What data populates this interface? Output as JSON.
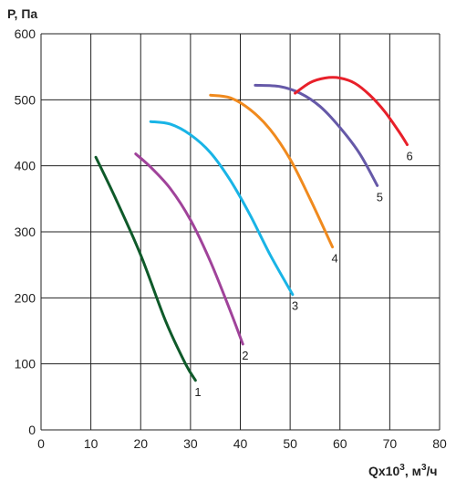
{
  "chart_data": {
    "type": "line",
    "xlabel_main": "Qx10",
    "xlabel_sup": "3",
    "xlabel_tail": ", м",
    "xlabel_sup2": "3",
    "xlabel_end": "/ч",
    "ylabel": "P, Па",
    "xlim": [
      0,
      80
    ],
    "ylim": [
      0,
      600
    ],
    "xticks": [
      0,
      10,
      20,
      30,
      40,
      50,
      60,
      70,
      80
    ],
    "yticks": [
      0,
      100,
      200,
      300,
      400,
      500,
      600
    ],
    "grid": true,
    "series": [
      {
        "label": "1",
        "color": "#0f5a2a",
        "x": [
          11,
          15,
          20,
          25,
          29,
          31
        ],
        "y": [
          413,
          350,
          265,
          165,
          100,
          75
        ]
      },
      {
        "label": "2",
        "color": "#a0439a",
        "x": [
          19,
          22,
          26,
          30,
          34,
          38,
          40.5
        ],
        "y": [
          418,
          398,
          365,
          318,
          255,
          180,
          130
        ]
      },
      {
        "label": "3",
        "color": "#19b4e6",
        "x": [
          22,
          26,
          30,
          34,
          38,
          42,
          46,
          50.5
        ],
        "y": [
          467,
          463,
          447,
          420,
          378,
          325,
          265,
          205
        ]
      },
      {
        "label": "4",
        "color": "#f08a1e",
        "x": [
          34,
          38,
          42,
          46,
          50,
          54,
          58.5
        ],
        "y": [
          507,
          503,
          485,
          455,
          410,
          350,
          277
        ]
      },
      {
        "label": "5",
        "color": "#6659a8",
        "x": [
          43,
          48,
          52,
          56,
          60,
          64,
          67.5
        ],
        "y": [
          522,
          520,
          510,
          490,
          458,
          418,
          370
        ]
      },
      {
        "label": "6",
        "color": "#e8202a",
        "x": [
          51,
          54,
          57,
          60,
          63,
          66,
          69,
          72,
          73.5
        ],
        "y": [
          510,
          526,
          533,
          533,
          525,
          507,
          482,
          450,
          432
        ]
      }
    ]
  }
}
